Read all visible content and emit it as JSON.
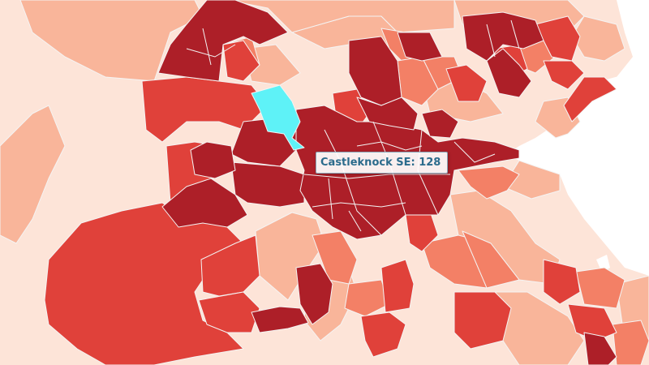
{
  "map": {
    "colors": {
      "sea": "#ffffff",
      "outer": "#fde4d8",
      "light": "#f9b59a",
      "medium": "#f38066",
      "red": "#e0413a",
      "dark": "#ad1f28",
      "hover": "#5ef2f7",
      "border": "#f4f4f4"
    },
    "hovered_area": "Castleknock SE"
  },
  "tooltip": {
    "label": "Castleknock SE",
    "value": "128",
    "text": "Castleknock SE: 128"
  }
}
